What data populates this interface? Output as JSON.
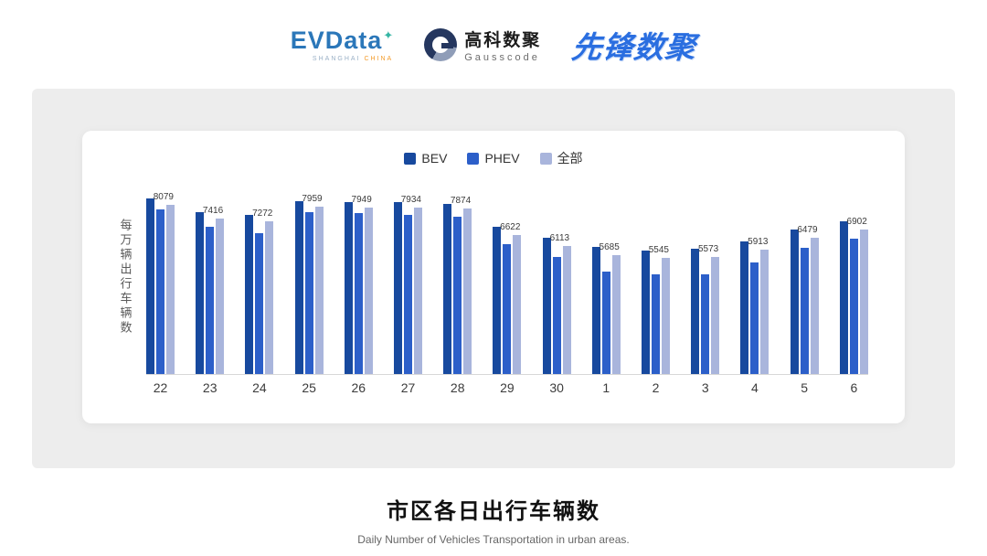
{
  "header": {
    "evdata": {
      "name": "EVData",
      "star": "✦",
      "subtext_left": "SHANGHAI",
      "subtext_right": "CHINA"
    },
    "gausscode": {
      "cn": "高科数聚",
      "en": "Gausscode"
    },
    "pioneer": {
      "text": "先锋数聚"
    }
  },
  "chart_data": {
    "type": "bar",
    "title": "市区各日出行车辆数",
    "subtitle": "Daily Number of Vehicles Transportation in urban areas.",
    "ylabel": "每万辆出行车辆数",
    "categories": [
      "22",
      "23",
      "24",
      "25",
      "26",
      "27",
      "28",
      "29",
      "30",
      "1",
      "2",
      "3",
      "4",
      "5",
      "6"
    ],
    "ylim": [
      0,
      8500
    ],
    "grid": false,
    "legend_position": "top",
    "series": [
      {
        "key": "bev",
        "name": "BEV",
        "color": "#17499e",
        "labels_shown": false,
        "values": [
          8350,
          7700,
          7600,
          8250,
          8200,
          8200,
          8100,
          7000,
          6500,
          6050,
          5900,
          5950,
          6300,
          6900,
          7300
        ]
      },
      {
        "key": "phev",
        "name": "PHEV",
        "color": "#2c5fc9",
        "labels_shown": false,
        "values": [
          7850,
          7000,
          6700,
          7700,
          7650,
          7600,
          7500,
          6200,
          5600,
          4900,
          4750,
          4750,
          5300,
          6000,
          6450
        ]
      },
      {
        "key": "all",
        "name": "全部",
        "color": "#a9b5dc",
        "labels_shown": true,
        "values": [
          8079,
          7416,
          7272,
          7959,
          7949,
          7934,
          7874,
          6622,
          6113,
          5685,
          5545,
          5573,
          5913,
          6479,
          6902
        ]
      }
    ]
  }
}
